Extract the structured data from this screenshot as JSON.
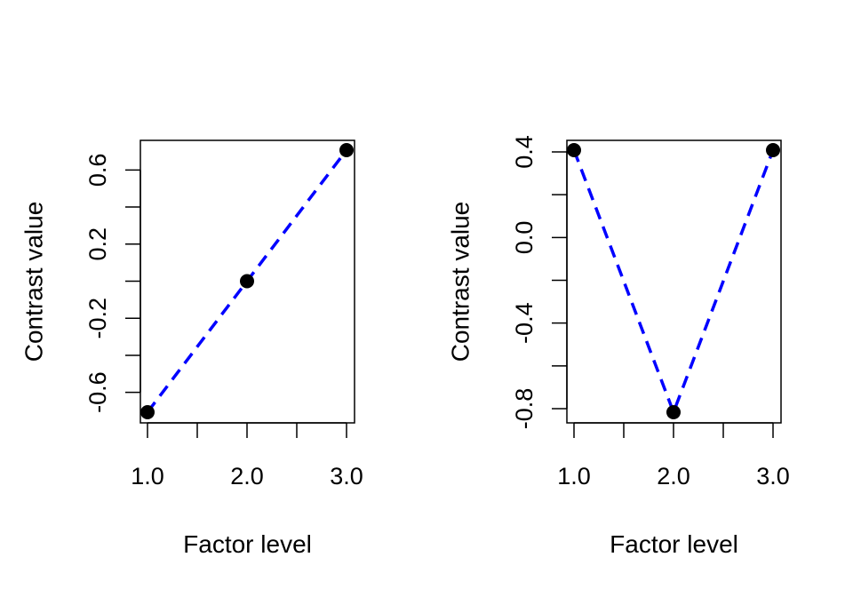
{
  "chart_data": [
    {
      "type": "line",
      "title": "",
      "xlabel": "Factor level",
      "ylabel": "Contrast value",
      "x": [
        1,
        2,
        3
      ],
      "y": [
        -0.7071,
        0.0,
        0.7071
      ],
      "xlim": [
        1.0,
        3.0
      ],
      "ylim": [
        -0.7071,
        0.7071
      ],
      "x_ticks": [
        1.0,
        1.5,
        2.0,
        2.5,
        3.0
      ],
      "x_tick_labels": [
        "1.0",
        "",
        "2.0",
        "",
        "3.0"
      ],
      "y_ticks": [
        -0.6,
        -0.4,
        -0.2,
        0.0,
        0.2,
        0.4,
        0.6
      ],
      "y_tick_labels": [
        "-0.6",
        "",
        "-0.2",
        "",
        "0.2",
        "",
        "0.6"
      ],
      "line_color": "#0000ff",
      "line_style": "dashed",
      "point_color": "#000000",
      "grid": false,
      "legend": "none"
    },
    {
      "type": "line",
      "title": "",
      "xlabel": "Factor level",
      "ylabel": "Contrast value",
      "x": [
        1,
        2,
        3
      ],
      "y": [
        0.4082,
        -0.8165,
        0.4082
      ],
      "xlim": [
        1.0,
        3.0
      ],
      "ylim": [
        -0.8165,
        0.4082
      ],
      "x_ticks": [
        1.0,
        1.5,
        2.0,
        2.5,
        3.0
      ],
      "x_tick_labels": [
        "1.0",
        "",
        "2.0",
        "",
        "3.0"
      ],
      "y_ticks": [
        -0.8,
        -0.6,
        -0.4,
        -0.2,
        0.0,
        0.2,
        0.4
      ],
      "y_tick_labels": [
        "-0.8",
        "",
        "-0.4",
        "",
        "0.0",
        "",
        "0.4"
      ],
      "line_color": "#0000ff",
      "line_style": "dashed",
      "point_color": "#000000",
      "grid": false,
      "legend": "none"
    }
  ]
}
